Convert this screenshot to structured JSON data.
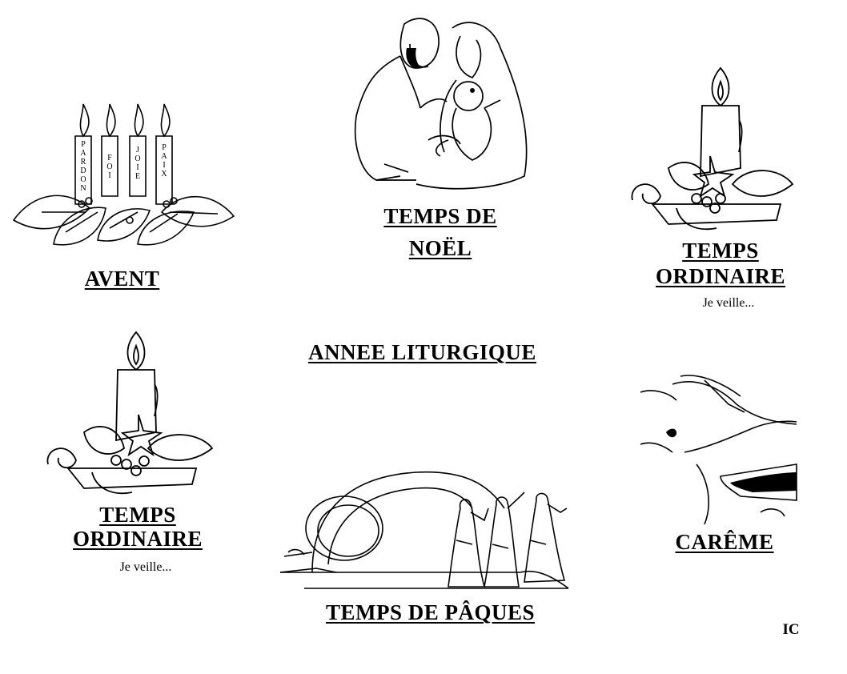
{
  "main_title": "ANNEE LITURGIQUE",
  "sections": {
    "avent": {
      "title": "AVENT",
      "candle_words": [
        "PARDON",
        "FOI",
        "JOIE",
        "PAIX"
      ]
    },
    "noel": {
      "title_line1": "TEMPS DE",
      "title_line2": "NOËL"
    },
    "ordinaire_1": {
      "title_line1": "TEMPS",
      "title_line2": "ORDINAIRE",
      "note": "Je veille..."
    },
    "ordinaire_2": {
      "title_line1": "TEMPS",
      "title_line2": "ORDINAIRE",
      "note": "Je veille..."
    },
    "paques": {
      "title": "TEMPS DE PÂQUES"
    },
    "careme": {
      "title": "CARÊME"
    }
  },
  "initials": "IC",
  "icons": {
    "advent_wreath": "advent-wreath-icon",
    "nativity": "nativity-icon",
    "candle": "candle-holly-icon",
    "empty_tomb": "empty-tomb-icon",
    "ashes": "ash-cross-icon"
  },
  "colors": {
    "ink": "#000000",
    "paper": "#ffffff"
  }
}
